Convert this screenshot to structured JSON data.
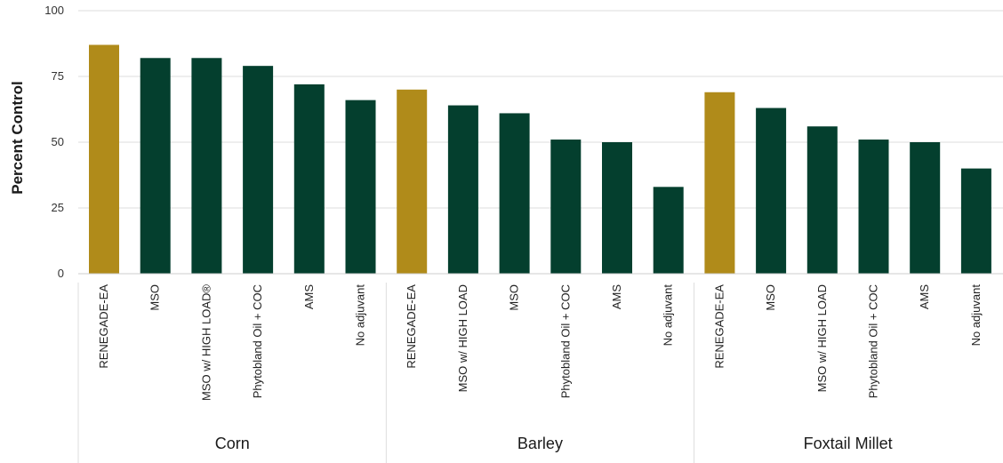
{
  "chart_data": {
    "type": "bar",
    "ylabel": "Percent Control",
    "xlabel": "",
    "ylim": [
      0,
      100
    ],
    "yticks": [
      0,
      25,
      50,
      75,
      100
    ],
    "grid": true,
    "colors": {
      "highlight": "#B08B1A",
      "default": "#043F2E"
    },
    "groups": [
      {
        "name": "Corn",
        "bars": [
          {
            "label": "RENEGADE-EA",
            "value": 87,
            "highlight": true
          },
          {
            "label": "MSO",
            "value": 82,
            "highlight": false
          },
          {
            "label": "MSO w/ HIGH LOAD®",
            "value": 82,
            "highlight": false
          },
          {
            "label": "Phytobland  Oil + COC",
            "value": 79,
            "highlight": false
          },
          {
            "label": "AMS",
            "value": 72,
            "highlight": false
          },
          {
            "label": "No adjuvant",
            "value": 66,
            "highlight": false
          }
        ]
      },
      {
        "name": "Barley",
        "bars": [
          {
            "label": "RENEGADE-EA",
            "value": 70,
            "highlight": true
          },
          {
            "label": "MSO w/ HIGH LOAD",
            "value": 64,
            "highlight": false
          },
          {
            "label": "MSO",
            "value": 61,
            "highlight": false
          },
          {
            "label": "Phytobland  Oil + COC",
            "value": 51,
            "highlight": false
          },
          {
            "label": "AMS",
            "value": 50,
            "highlight": false
          },
          {
            "label": "No adjuvant",
            "value": 33,
            "highlight": false
          }
        ]
      },
      {
        "name": "Foxtail Millet",
        "bars": [
          {
            "label": "RENEGADE-EA",
            "value": 69,
            "highlight": true
          },
          {
            "label": "MSO",
            "value": 63,
            "highlight": false
          },
          {
            "label": "MSO w/ HIGH LOAD",
            "value": 56,
            "highlight": false
          },
          {
            "label": "Phytobland  Oil + COC",
            "value": 51,
            "highlight": false
          },
          {
            "label": "AMS",
            "value": 50,
            "highlight": false
          },
          {
            "label": "No adjuvant",
            "value": 40,
            "highlight": false
          }
        ]
      }
    ]
  }
}
